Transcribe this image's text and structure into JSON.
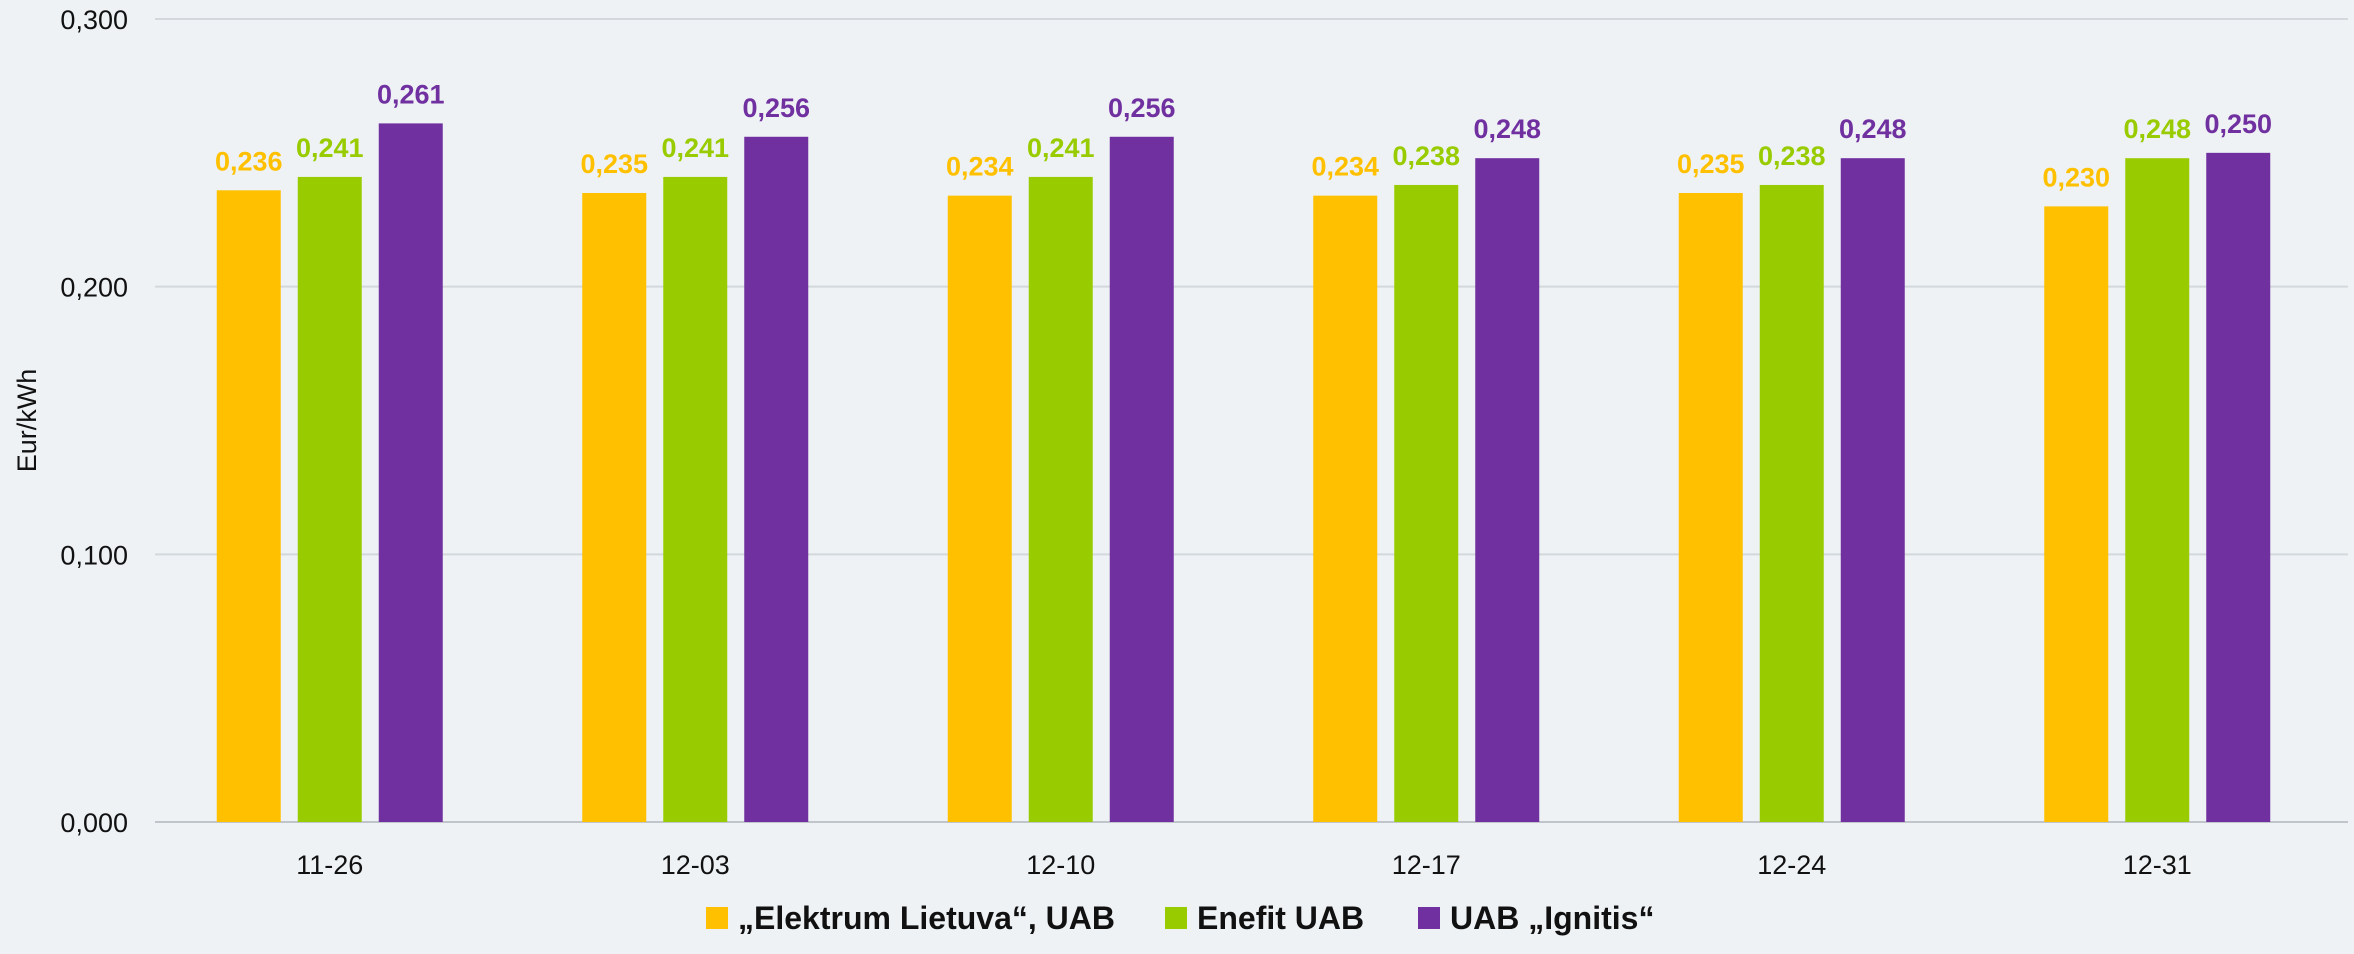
{
  "chart_data": {
    "type": "bar",
    "title": "",
    "xlabel": "",
    "ylabel": "Eur/kWh",
    "ylim": [
      0,
      0.3
    ],
    "yticks": [
      0,
      0.1,
      0.2,
      0.3
    ],
    "ytick_labels": [
      "0,000",
      "0,100",
      "0,200",
      "0,300"
    ],
    "grid": true,
    "legend_position": "bottom-center",
    "categories": [
      "11-26",
      "12-03",
      "12-10",
      "12-17",
      "12-24",
      "12-31"
    ],
    "series": [
      {
        "name": "„Elektrum Lietuva“, UAB",
        "color": "#ffc000",
        "values": [
          0.236,
          0.235,
          0.234,
          0.234,
          0.235,
          0.23
        ],
        "labels": [
          "0,236",
          "0,235",
          "0,234",
          "0,234",
          "0,235",
          "0,230"
        ]
      },
      {
        "name": "Enefit UAB",
        "color": "#99cc00",
        "values": [
          0.241,
          0.241,
          0.241,
          0.238,
          0.238,
          0.248
        ],
        "labels": [
          "0,241",
          "0,241",
          "0,241",
          "0,238",
          "0,238",
          "0,248"
        ]
      },
      {
        "name": "UAB „Ignitis“",
        "color": "#7030a0",
        "values": [
          0.261,
          0.256,
          0.256,
          0.248,
          0.248,
          0.25
        ],
        "labels": [
          "0,261",
          "0,256",
          "0,256",
          "0,248",
          "0,248",
          "0,250"
        ]
      }
    ]
  }
}
